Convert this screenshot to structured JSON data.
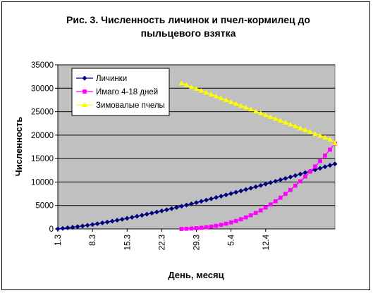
{
  "chart_data": {
    "type": "line",
    "title_lines": [
      "Рис. 3. Численность личинок и пчел-кормилец до",
      "пыльцевого взятка"
    ],
    "xlabel": "День, месяц",
    "ylabel": "Численность",
    "ylim": [
      0,
      35000
    ],
    "yticks": [
      0,
      5000,
      10000,
      15000,
      20000,
      25000,
      30000,
      35000
    ],
    "ytick_labels": [
      "0",
      "5000",
      "10000",
      "15000",
      "20000",
      "25000",
      "30000",
      "35000"
    ],
    "x_count": 57,
    "xtick_labels": [
      {
        "index": 0,
        "label": "1.3"
      },
      {
        "index": 7,
        "label": "8.3"
      },
      {
        "index": 14,
        "label": "15.3"
      },
      {
        "index": 21,
        "label": "22.3"
      },
      {
        "index": 28,
        "label": "29.3"
      },
      {
        "index": 35,
        "label": "5.4"
      },
      {
        "index": 42,
        "label": "12.4"
      }
    ],
    "grid": "horizontal",
    "legend_position": "top-left",
    "series": [
      {
        "name": "Личинки",
        "color": "#000080",
        "marker": "diamond",
        "start_index": 0,
        "values": [
          0,
          110,
          230,
          350,
          480,
          620,
          770,
          930,
          1100,
          1280,
          1460,
          1650,
          1850,
          2050,
          2260,
          2470,
          2690,
          2910,
          3140,
          3370,
          3600,
          3840,
          4080,
          4330,
          4580,
          4830,
          5090,
          5350,
          5610,
          5880,
          6150,
          6420,
          6700,
          6980,
          7260,
          7540,
          7820,
          8110,
          8400,
          8690,
          8980,
          9270,
          9570,
          9870,
          10170,
          10470,
          10770,
          11070,
          11380,
          11690,
          12000,
          12310,
          12620,
          12930,
          13250,
          13560,
          13870
        ]
      },
      {
        "name": "Имаго 4-18 дней",
        "color": "#FF00FF",
        "marker": "square",
        "start_index": 25,
        "values": [
          0,
          30,
          80,
          150,
          240,
          350,
          490,
          660,
          860,
          1100,
          1380,
          1700,
          2060,
          2460,
          2910,
          3410,
          3960,
          4560,
          5210,
          5910,
          6660,
          7460,
          8310,
          9210,
          10160,
          11160,
          12210,
          13310,
          14460,
          15660,
          16910,
          18210
        ]
      },
      {
        "name": "Зимовалые пчелы",
        "color": "#FFFF00",
        "marker": "triangle",
        "start_index": 25,
        "values": [
          31100,
          30700,
          30300,
          29900,
          29500,
          29100,
          28700,
          28300,
          27900,
          27500,
          27100,
          26700,
          26300,
          25900,
          25500,
          25100,
          24700,
          24300,
          23900,
          23500,
          23100,
          22700,
          22300,
          21900,
          21500,
          21100,
          20700,
          20300,
          19900,
          19500,
          19100,
          18300
        ]
      }
    ]
  }
}
